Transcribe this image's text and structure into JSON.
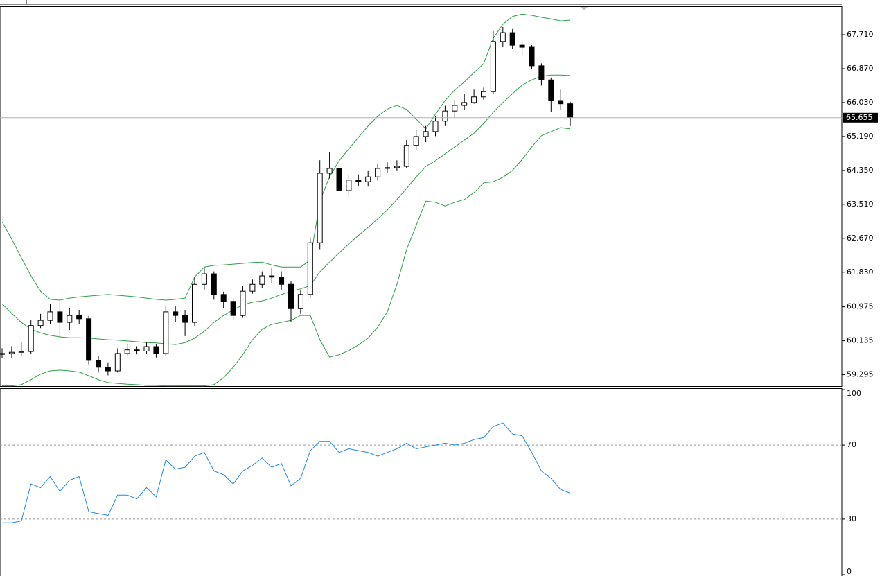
{
  "chart_data": [
    {
      "type": "candlestick",
      "up_color": "#ffffff",
      "down_color": "#000000",
      "outline_color": "#000000",
      "ylim": [
        59.013,
        68.396
      ],
      "yticks": [
        {
          "value": 67.71,
          "label": "67.710"
        },
        {
          "value": 66.87,
          "label": "66.870"
        },
        {
          "value": 66.03,
          "label": "66.030"
        },
        {
          "value": 65.19,
          "label": "65.190"
        },
        {
          "value": 64.35,
          "label": "64.350"
        },
        {
          "value": 63.51,
          "label": "63.510"
        },
        {
          "value": 62.67,
          "label": "62.670"
        },
        {
          "value": 61.83,
          "label": "61.830"
        },
        60.975,
        {
          "value": 60.135,
          "label": "60.135"
        },
        59.295
      ],
      "current_price": 65.655,
      "open": [
        59.8,
        59.82,
        59.85,
        59.87,
        60.51,
        60.64,
        60.85,
        60.59,
        60.76,
        60.68,
        59.65,
        59.48,
        59.39,
        59.82,
        59.91,
        59.88,
        59.99,
        59.82,
        60.85,
        60.76,
        60.59,
        61.53,
        61.79,
        61.28,
        61.11,
        60.76,
        61.36,
        61.53,
        61.74,
        61.71,
        61.53,
        60.93,
        61.28,
        62.56,
        64.28,
        64.4,
        63.85,
        64.11,
        64.07,
        64.19,
        64.4,
        64.42,
        64.45,
        64.97,
        65.19,
        65.31,
        65.57,
        65.82,
        65.96,
        66.03,
        66.17,
        66.3,
        67.54,
        67.76,
        67.45,
        67.4,
        66.94,
        66.59,
        66.08,
        66.0
      ],
      "high": [
        59.95,
        60.0,
        60.1,
        60.65,
        60.8,
        61.05,
        61.1,
        60.95,
        60.9,
        60.75,
        59.75,
        59.6,
        59.95,
        60.05,
        60.0,
        60.1,
        60.05,
        61.0,
        61.0,
        60.9,
        61.7,
        61.95,
        61.85,
        61.35,
        61.2,
        61.5,
        61.65,
        61.85,
        61.95,
        61.85,
        61.6,
        61.4,
        62.7,
        64.6,
        64.8,
        64.45,
        64.25,
        64.25,
        64.35,
        64.5,
        64.55,
        64.6,
        65.1,
        65.35,
        65.45,
        65.7,
        65.95,
        66.1,
        66.25,
        66.35,
        66.4,
        67.8,
        67.9,
        67.85,
        67.55,
        67.45,
        67.0,
        66.65,
        66.35,
        66.05
      ],
      "low": [
        59.7,
        59.72,
        59.75,
        59.8,
        60.45,
        60.55,
        60.2,
        60.4,
        60.55,
        59.55,
        59.35,
        59.28,
        59.35,
        59.75,
        59.8,
        59.8,
        59.72,
        59.75,
        60.6,
        60.25,
        60.5,
        61.4,
        61.15,
        60.95,
        60.65,
        60.7,
        61.3,
        61.45,
        61.55,
        61.4,
        60.6,
        60.8,
        61.2,
        62.4,
        64.15,
        63.4,
        63.7,
        63.95,
        63.95,
        64.1,
        64.3,
        64.35,
        64.4,
        64.85,
        65.05,
        65.2,
        65.45,
        65.65,
        65.85,
        66.0,
        66.1,
        66.25,
        67.4,
        67.35,
        67.2,
        66.85,
        66.45,
        65.8,
        65.85,
        65.45
      ],
      "close": [
        59.82,
        59.85,
        59.87,
        60.51,
        60.64,
        60.85,
        60.59,
        60.76,
        60.68,
        59.65,
        59.48,
        59.39,
        59.82,
        59.91,
        59.91,
        59.99,
        59.82,
        60.85,
        60.76,
        60.59,
        61.53,
        61.79,
        61.28,
        61.11,
        60.76,
        61.36,
        61.53,
        61.74,
        61.71,
        61.53,
        60.93,
        61.28,
        62.56,
        64.28,
        64.4,
        63.85,
        64.11,
        64.07,
        64.19,
        64.4,
        64.42,
        64.45,
        64.97,
        65.19,
        65.31,
        65.57,
        65.82,
        65.96,
        66.03,
        66.17,
        66.3,
        67.54,
        67.76,
        67.45,
        67.4,
        66.94,
        66.59,
        66.08,
        66.0,
        65.66
      ],
      "bands": [
        {
          "color": "#2e9e4a",
          "values": [
            63.08,
            62.65,
            62.19,
            61.74,
            61.36,
            61.16,
            61.14,
            61.19,
            61.22,
            61.24,
            61.26,
            61.28,
            61.26,
            61.24,
            61.22,
            61.19,
            61.16,
            61.14,
            61.16,
            61.19,
            61.71,
            61.96,
            62.0,
            62.01,
            62.03,
            62.05,
            62.07,
            62.08,
            62.01,
            61.96,
            61.96,
            61.96,
            62.13,
            63.59,
            64.19,
            64.59,
            64.88,
            65.17,
            65.45,
            65.69,
            65.87,
            65.96,
            65.86,
            65.62,
            65.38,
            65.74,
            66.08,
            66.34,
            66.54,
            66.77,
            66.99,
            67.62,
            67.97,
            68.16,
            68.22,
            68.19,
            68.14,
            68.1,
            68.05,
            68.07
          ]
        },
        {
          "color": "#2e9e4a",
          "values": [
            61.05,
            60.81,
            60.59,
            60.42,
            60.33,
            60.27,
            60.23,
            60.21,
            60.21,
            60.2,
            60.18,
            60.16,
            60.15,
            60.13,
            60.11,
            60.09,
            60.08,
            60.06,
            60.04,
            60.09,
            60.2,
            60.37,
            60.59,
            60.76,
            60.9,
            61.02,
            61.09,
            61.12,
            61.19,
            61.28,
            61.36,
            61.42,
            61.5,
            61.84,
            62.08,
            62.31,
            62.53,
            62.74,
            62.94,
            63.15,
            63.37,
            63.63,
            63.9,
            64.19,
            64.45,
            64.59,
            64.76,
            64.93,
            65.1,
            65.27,
            65.51,
            65.79,
            66.03,
            66.25,
            66.46,
            66.59,
            66.68,
            66.71,
            66.71,
            66.7
          ]
        },
        {
          "color": "#2e9e4a",
          "values": [
            59.02,
            59.02,
            59.05,
            59.17,
            59.31,
            59.39,
            59.41,
            59.39,
            59.36,
            59.27,
            59.17,
            59.1,
            59.08,
            59.06,
            59.05,
            59.03,
            59.03,
            59.02,
            59.02,
            59.02,
            59.02,
            59.02,
            59.05,
            59.22,
            59.48,
            59.79,
            60.16,
            60.42,
            60.54,
            60.59,
            60.64,
            60.76,
            60.76,
            60.16,
            59.73,
            59.79,
            59.89,
            60.03,
            60.2,
            60.47,
            60.85,
            61.53,
            62.39,
            62.99,
            63.59,
            63.56,
            63.47,
            63.56,
            63.63,
            63.8,
            64.04,
            64.07,
            64.18,
            64.35,
            64.62,
            64.93,
            65.21,
            65.31,
            65.41,
            65.38
          ]
        }
      ]
    },
    {
      "type": "line",
      "color": "#1e88e5",
      "ylim": [
        0,
        100
      ],
      "yticks": [
        100,
        70,
        30,
        0
      ],
      "values": [
        28,
        28,
        29,
        49,
        47,
        53,
        45,
        51,
        53,
        34,
        33,
        32,
        43,
        43,
        41,
        47,
        42,
        62,
        57,
        58,
        64,
        66,
        56,
        54,
        49,
        56,
        59,
        63,
        58,
        60,
        48,
        52,
        67,
        72,
        72,
        66,
        68,
        67,
        66,
        64,
        66,
        68,
        71,
        68,
        69,
        70,
        71,
        70,
        71,
        73,
        74,
        80,
        82,
        76,
        75,
        66,
        56,
        52,
        46,
        44
      ]
    }
  ]
}
